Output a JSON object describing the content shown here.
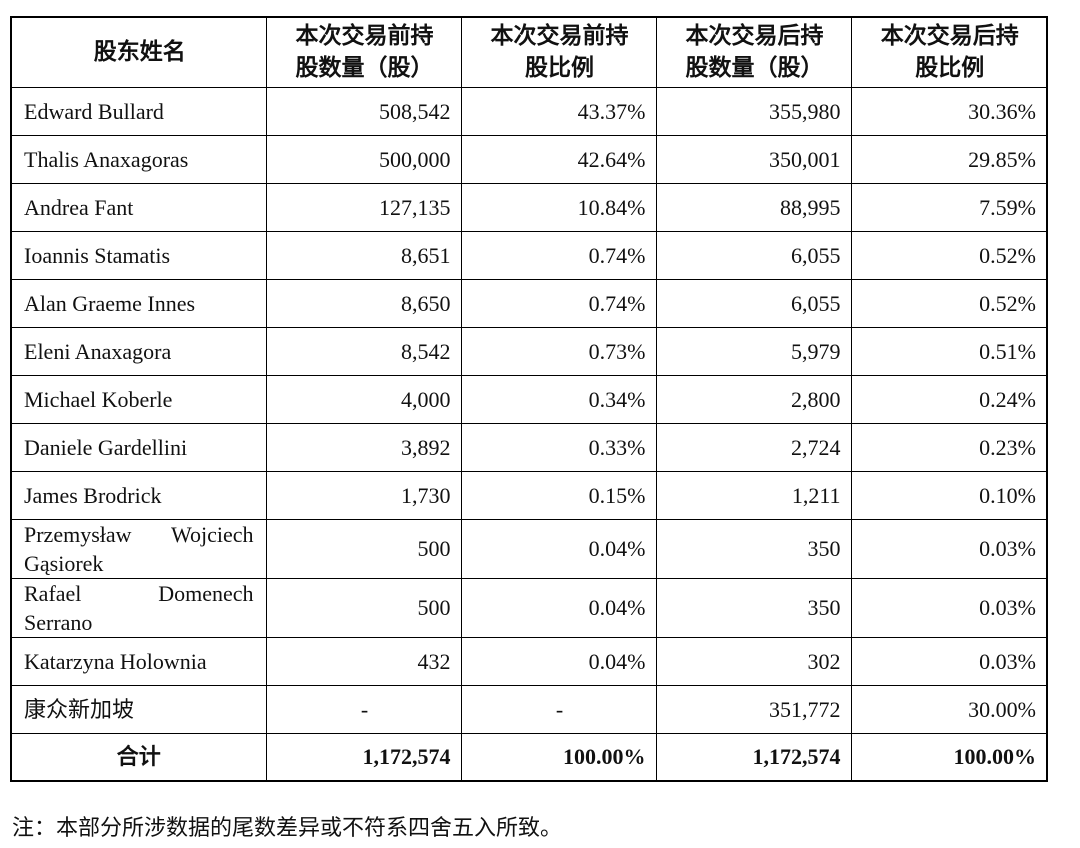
{
  "table": {
    "header": [
      "股东姓名",
      [
        "本次交易前持",
        "股数量（股）"
      ],
      [
        "本次交易前持",
        "股比例"
      ],
      [
        "本次交易后持",
        "股数量（股）"
      ],
      [
        "本次交易后持",
        "股比例"
      ]
    ],
    "rows": [
      [
        "Edward Bullard",
        "508,542",
        "43.37%",
        "355,980",
        "30.36%"
      ],
      [
        "Thalis Anaxagoras",
        "500,000",
        "42.64%",
        "350,001",
        "29.85%"
      ],
      [
        "Andrea Fant",
        "127,135",
        "10.84%",
        "88,995",
        "7.59%"
      ],
      [
        "Ioannis Stamatis",
        "8,651",
        "0.74%",
        "6,055",
        "0.52%"
      ],
      [
        "Alan Graeme Innes",
        "8,650",
        "0.74%",
        "6,055",
        "0.52%"
      ],
      [
        "Eleni Anaxagora",
        "8,542",
        "0.73%",
        "5,979",
        "0.51%"
      ],
      [
        "Michael Koberle",
        "4,000",
        "0.34%",
        "2,800",
        "0.24%"
      ],
      [
        "Daniele Gardellini",
        "3,892",
        "0.33%",
        "2,724",
        "0.23%"
      ],
      [
        "James Brodrick",
        "1,730",
        "0.15%",
        "1,211",
        "0.10%"
      ],
      [
        "Przemysław Wojciech Gąsiorek",
        "500",
        "0.04%",
        "350",
        "0.03%"
      ],
      [
        "Rafael Domenech Serrano",
        "500",
        "0.04%",
        "350",
        "0.03%"
      ],
      [
        "Katarzyna Holownia",
        "432",
        "0.04%",
        "302",
        "0.03%"
      ],
      [
        "康众新加坡",
        "-",
        "-",
        "351,772",
        "30.00%"
      ]
    ],
    "total": [
      "合计",
      "1,172,574",
      "100.00%",
      "1,172,574",
      "100.00%"
    ]
  },
  "note": "注：本部分所涉数据的尾数差异或不符系四舍五入所致。"
}
